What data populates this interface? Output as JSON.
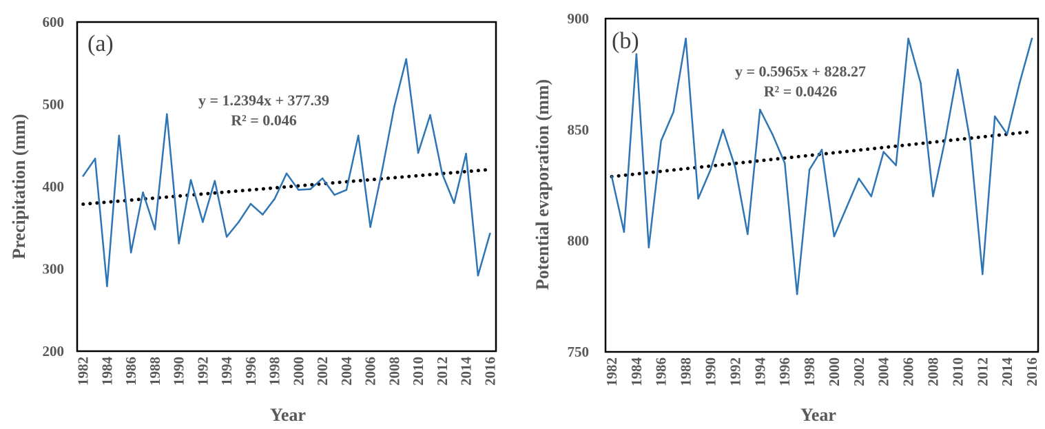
{
  "chart_data": [
    {
      "type": "line",
      "panel_label": "(a)",
      "xlabel": "Year",
      "ylabel": "Precipitation (mm)",
      "ylim": [
        200,
        600
      ],
      "yticks": [
        "200",
        "300",
        "400",
        "500",
        "600"
      ],
      "xticks": [
        "1982",
        "1984",
        "1986",
        "1988",
        "1990",
        "1992",
        "1994",
        "1996",
        "1998",
        "2000",
        "2002",
        "2004",
        "2006",
        "2008",
        "2010",
        "2012",
        "2014",
        "2016"
      ],
      "x": [
        1982,
        1983,
        1984,
        1985,
        1986,
        1987,
        1988,
        1989,
        1990,
        1991,
        1992,
        1993,
        1994,
        1995,
        1996,
        1997,
        1998,
        1999,
        2000,
        2001,
        2002,
        2003,
        2004,
        2005,
        2006,
        2007,
        2008,
        2009,
        2010,
        2011,
        2012,
        2013,
        2014,
        2015,
        2016
      ],
      "series": [
        {
          "name": "Precipitation",
          "color": "#2E75B6",
          "values": [
            413,
            434,
            279,
            462,
            320,
            393,
            348,
            488,
            331,
            408,
            357,
            407,
            339,
            357,
            379,
            366,
            385,
            416,
            396,
            397,
            410,
            390,
            396,
            462,
            351,
            421,
            497,
            555,
            441,
            487,
            416,
            380,
            440,
            292,
            343
          ]
        }
      ],
      "trendline": {
        "slope": 1.2394,
        "intercept": 377.39,
        "color": "#000000"
      },
      "equation": "y = 1.2394x + 377.39",
      "r_squared": "R² = 0.046",
      "grid": false
    },
    {
      "type": "line",
      "panel_label": "(b)",
      "xlabel": "Year",
      "ylabel": "Potential evaporation (mm)",
      "ylim": [
        750,
        900
      ],
      "yticks": [
        "750",
        "800",
        "850",
        "900"
      ],
      "xticks": [
        "1982",
        "1984",
        "1986",
        "1988",
        "1990",
        "1992",
        "1994",
        "1996",
        "1998",
        "2000",
        "2002",
        "2004",
        "2006",
        "2008",
        "2010",
        "2012",
        "2014",
        "2016"
      ],
      "x": [
        1982,
        1983,
        1984,
        1985,
        1986,
        1987,
        1988,
        1989,
        1990,
        1991,
        1992,
        1993,
        1994,
        1995,
        1996,
        1997,
        1998,
        1999,
        2000,
        2001,
        2002,
        2003,
        2004,
        2005,
        2006,
        2007,
        2008,
        2009,
        2010,
        2011,
        2012,
        2013,
        2014,
        2015,
        2016
      ],
      "series": [
        {
          "name": "Potential evaporation",
          "color": "#2E75B6",
          "values": [
            829,
            804,
            884,
            797,
            845,
            858,
            891,
            819,
            832,
            850,
            833,
            803,
            859,
            848,
            835,
            776,
            832,
            841,
            802,
            815,
            828,
            820,
            840,
            834,
            891,
            871,
            820,
            846,
            877,
            845,
            785,
            856,
            848,
            871,
            891
          ]
        }
      ],
      "trendline": {
        "slope": 0.5965,
        "intercept": 828.27,
        "color": "#000000"
      },
      "equation": "y = 0.5965x + 828.27",
      "r_squared": "R² = 0.0426",
      "grid": false
    }
  ]
}
